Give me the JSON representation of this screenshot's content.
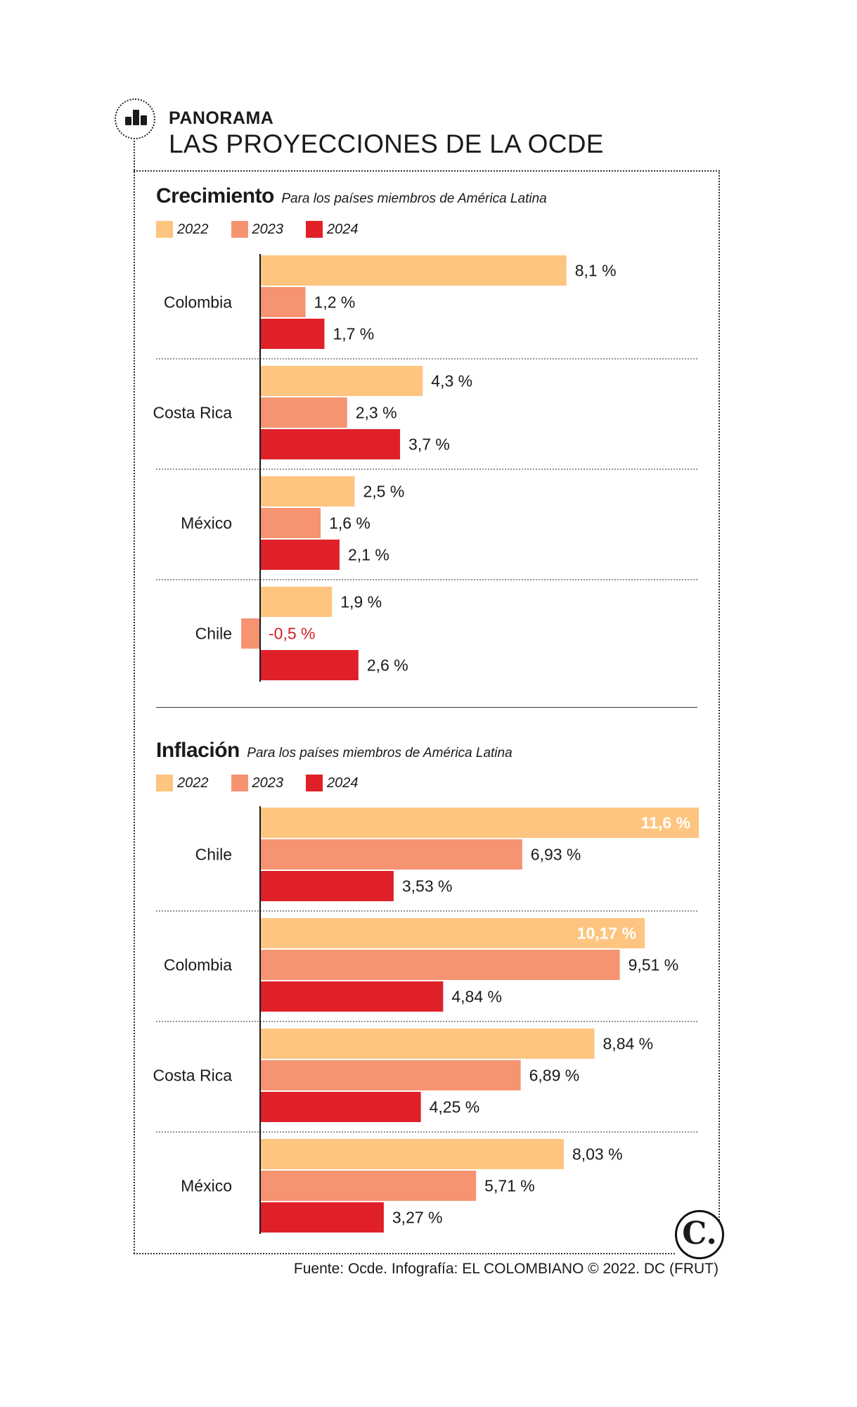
{
  "header": {
    "icon": "bar-chart-icon",
    "kicker": "PANORAMA",
    "title": "LAS PROYECCIONES DE LA OCDE"
  },
  "colors": {
    "2022": "#FDC57F",
    "2023": "#F69371",
    "2024": "#E02028",
    "negative_label": "#D12027",
    "inside_label": "#FFFFFF",
    "text": "#1a1a1a"
  },
  "source": "Fuente: Ocde. Infografía: EL COLOMBIANO © 2022. DC (FRUT)",
  "logo_letter": "C.",
  "chart_data": [
    {
      "type": "bar",
      "orientation": "horizontal",
      "title": "Crecimiento",
      "subtitle": "Para los países miembros de América Latina",
      "legend": [
        "2022",
        "2023",
        "2024"
      ],
      "categories": [
        "Colombia",
        "Costa Rica",
        "México",
        "Chile"
      ],
      "series": [
        {
          "name": "2022",
          "values": [
            8.1,
            4.3,
            2.5,
            1.9
          ],
          "labels": [
            "8,1 %",
            "4,3 %",
            "2,5 %",
            "1,9 %"
          ]
        },
        {
          "name": "2023",
          "values": [
            1.2,
            2.3,
            1.6,
            -0.5
          ],
          "labels": [
            "1,2 %",
            "2,3 %",
            "1,6 %",
            "-0,5 %"
          ]
        },
        {
          "name": "2024",
          "values": [
            1.7,
            3.7,
            2.1,
            2.6
          ],
          "labels": [
            "1,7 %",
            "3,7 %",
            "2,1 %",
            "2,6 %"
          ]
        }
      ],
      "xlim": [
        -0.5,
        11.6
      ],
      "grid": false
    },
    {
      "type": "bar",
      "orientation": "horizontal",
      "title": "Inflación",
      "subtitle": "Para los países miembros de América Latina",
      "legend": [
        "2022",
        "2023",
        "2024"
      ],
      "categories": [
        "Chile",
        "Colombia",
        "Costa Rica",
        "México"
      ],
      "series": [
        {
          "name": "2022",
          "values": [
            11.6,
            10.17,
            8.84,
            8.03
          ],
          "labels": [
            "11,6 %",
            "10,17 %",
            "8,84 %",
            "8,03 %"
          ]
        },
        {
          "name": "2023",
          "values": [
            6.93,
            9.51,
            6.89,
            5.71
          ],
          "labels": [
            "6,93 %",
            "9,51 %",
            "6,89 %",
            "5,71 %"
          ]
        },
        {
          "name": "2024",
          "values": [
            3.53,
            4.84,
            4.25,
            3.27
          ],
          "labels": [
            "3,53 %",
            "4,84 %",
            "4,25 %",
            "3,27 %"
          ]
        }
      ],
      "xlim": [
        0,
        11.6
      ],
      "grid": false
    }
  ]
}
